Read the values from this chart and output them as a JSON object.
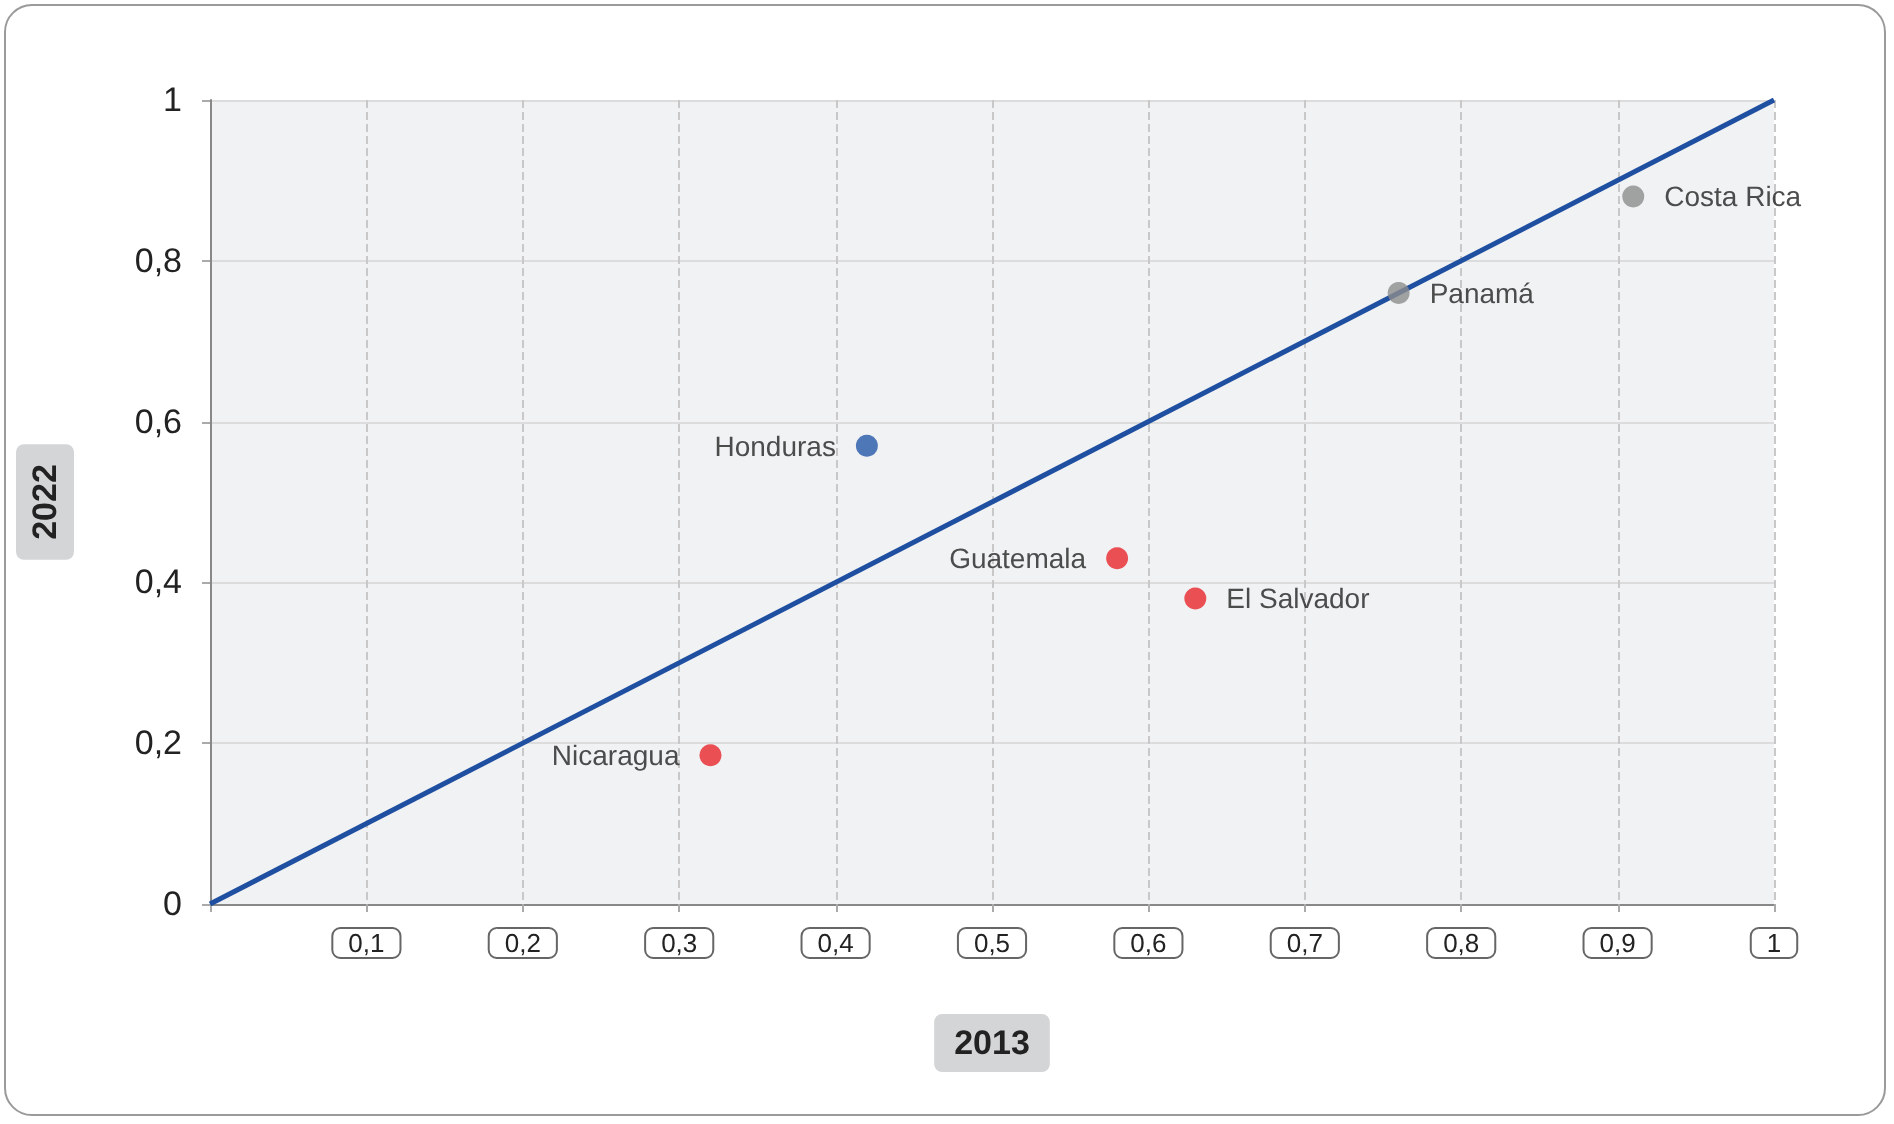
{
  "chart_data": {
    "type": "scatter",
    "xlabel": "2013",
    "ylabel": "2022",
    "xlim": [
      0,
      1
    ],
    "ylim": [
      0,
      1
    ],
    "xticks": [
      {
        "value": 0,
        "label": null
      },
      {
        "value": 0.1,
        "label": "0,1"
      },
      {
        "value": 0.2,
        "label": "0,2"
      },
      {
        "value": 0.3,
        "label": "0,3"
      },
      {
        "value": 0.4,
        "label": "0,4"
      },
      {
        "value": 0.5,
        "label": "0,5"
      },
      {
        "value": 0.6,
        "label": "0,6"
      },
      {
        "value": 0.7,
        "label": "0,7"
      },
      {
        "value": 0.8,
        "label": "0,8"
      },
      {
        "value": 0.9,
        "label": "0,9"
      },
      {
        "value": 1,
        "label": "1"
      }
    ],
    "yticks": [
      0,
      {
        "value": 0.2,
        "label": "0,2"
      },
      {
        "value": 0.4,
        "label": "0,4"
      },
      {
        "value": 0.6,
        "label": "0,6"
      },
      {
        "value": 0.8,
        "label": "0,8"
      },
      1
    ],
    "grid": true,
    "legend": false,
    "marker": "circle",
    "series": [
      {
        "name": "Costa Rica",
        "color": "#8c8c8c",
        "x": [
          0.91
        ],
        "values": [
          0.88
        ]
      },
      {
        "name": "Panamá",
        "color": "#8c8c8c",
        "x": [
          0.76
        ],
        "values": [
          0.76
        ]
      },
      {
        "name": "Honduras",
        "color": "#2557a7",
        "x": [
          0.42
        ],
        "values": [
          0.57
        ]
      },
      {
        "name": "Guatemala",
        "color": "#e8262b",
        "x": [
          0.58
        ],
        "values": [
          0.43
        ]
      },
      {
        "name": "El Salvador",
        "color": "#e8262b",
        "x": [
          0.63
        ],
        "values": [
          0.38
        ]
      },
      {
        "name": "Nicaragua",
        "color": "#e8262b",
        "x": [
          0.32
        ],
        "values": [
          0.185
        ]
      },
      {
        "type": "line",
        "color": "#1f4fa0",
        "marker": "none",
        "x": [
          0,
          1
        ],
        "values": [
          0,
          1
        ]
      }
    ]
  }
}
